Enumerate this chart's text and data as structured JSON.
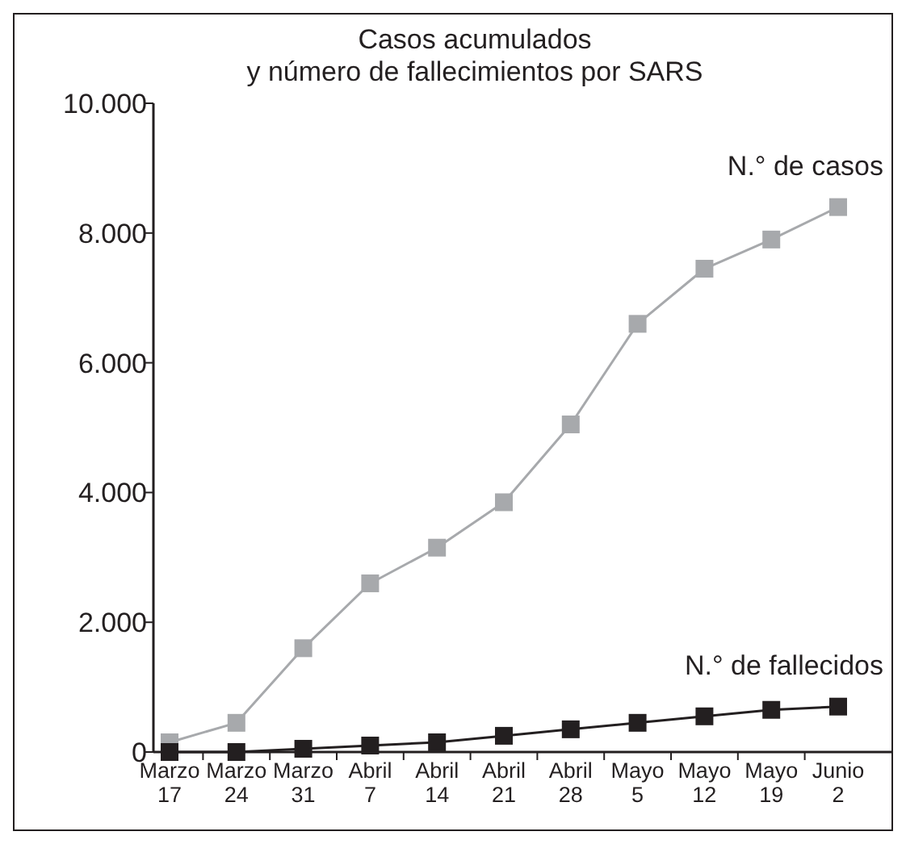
{
  "chart_data": {
    "type": "line",
    "title": "Casos acumulados\ny número de fallecimientos por SARS",
    "categories": [
      "Marzo 17",
      "Marzo 24",
      "Marzo 31",
      "Abril 7",
      "Abril 14",
      "Abril 21",
      "Abril 28",
      "Mayo 5",
      "Mayo 12",
      "Mayo 19",
      "Junio 2"
    ],
    "series": [
      {
        "name": "N.° de casos",
        "color": "#a7a9ac",
        "values": [
          150,
          450,
          1600,
          2600,
          3150,
          3850,
          5050,
          6600,
          7450,
          7900,
          8400
        ]
      },
      {
        "name": "N.° de fallecidos",
        "color": "#231f20",
        "values": [
          0,
          0,
          50,
          100,
          150,
          250,
          350,
          450,
          550,
          650,
          700
        ]
      }
    ],
    "ylim": [
      0,
      10000
    ],
    "yticks": [
      {
        "value": 0,
        "label": "0"
      },
      {
        "value": 2000,
        "label": "2.000"
      },
      {
        "value": 4000,
        "label": "4.000"
      },
      {
        "value": 6000,
        "label": "6.000"
      },
      {
        "value": 8000,
        "label": "8.000"
      },
      {
        "value": 10000,
        "label": "10.000"
      }
    ],
    "marker": "square",
    "grid": false
  }
}
